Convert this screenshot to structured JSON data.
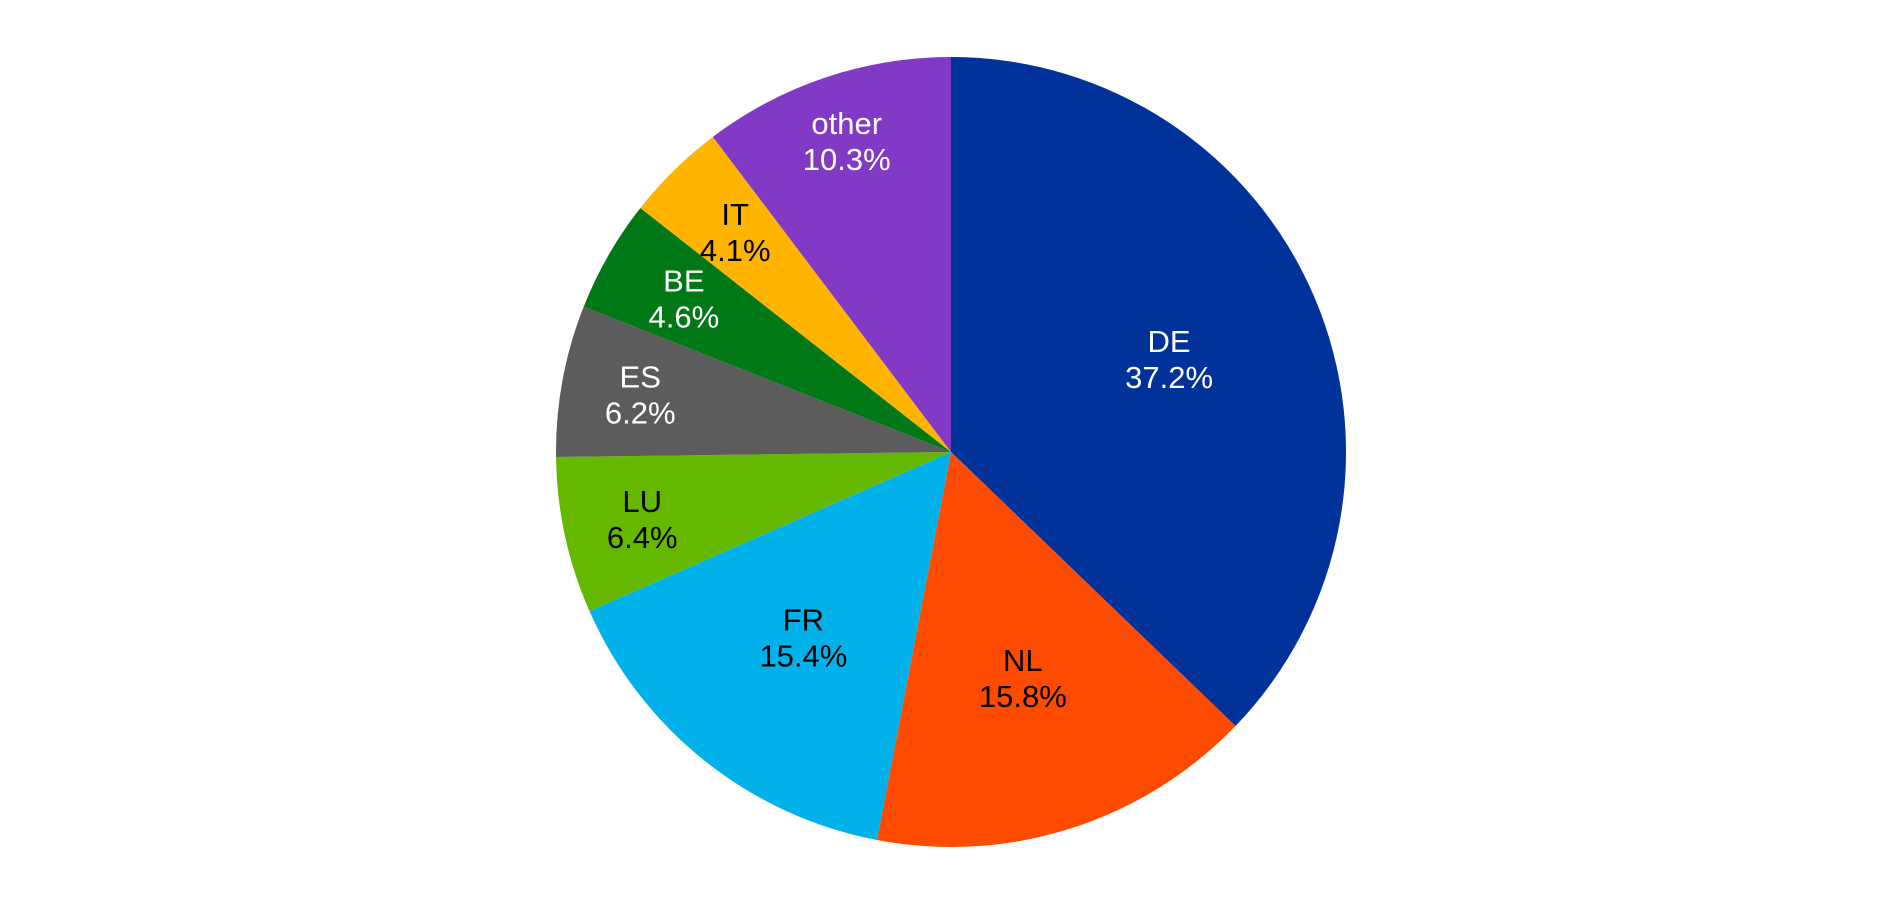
{
  "chart_data": {
    "type": "pie",
    "title": "",
    "start_angle_deg": 0,
    "direction": "clockwise",
    "slices": [
      {
        "label": "DE",
        "value": 37.2,
        "value_label": "37.2%",
        "color": "#003299",
        "text_color": "#ffffff"
      },
      {
        "label": "NL",
        "value": 15.8,
        "value_label": "15.8%",
        "color": "#ff4b00",
        "text_color": "#000000"
      },
      {
        "label": "FR",
        "value": 15.4,
        "value_label": "15.4%",
        "color": "#00b1ea",
        "text_color": "#000000"
      },
      {
        "label": "LU",
        "value": 6.4,
        "value_label": "6.4%",
        "color": "#65b800",
        "text_color": "#000000"
      },
      {
        "label": "ES",
        "value": 6.2,
        "value_label": "6.2%",
        "color": "#5c5c5c",
        "text_color": "#ffffff"
      },
      {
        "label": "BE",
        "value": 4.6,
        "value_label": "4.6%",
        "color": "#007816",
        "text_color": "#ffffff"
      },
      {
        "label": "IT",
        "value": 4.1,
        "value_label": "4.1%",
        "color": "#ffb400",
        "text_color": "#000000"
      },
      {
        "label": "other",
        "value": 10.3,
        "value_label": "10.3%",
        "color": "#8139c6",
        "text_color": "#ffffff"
      }
    ]
  }
}
